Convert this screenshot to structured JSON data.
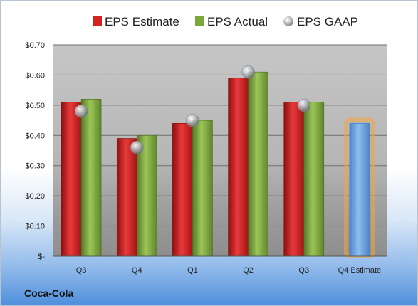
{
  "company": "Coca-Cola",
  "chart_data": {
    "type": "bar",
    "categories": [
      "Q3",
      "Q4",
      "Q1",
      "Q2",
      "Q3",
      "Q4 Estimate"
    ],
    "series": [
      {
        "name": "EPS Estimate",
        "values": [
          0.51,
          0.39,
          0.44,
          0.59,
          0.51,
          0.44
        ],
        "color": "#d42121",
        "style": "bar"
      },
      {
        "name": "EPS Actual",
        "values": [
          0.52,
          0.4,
          0.45,
          0.61,
          0.51,
          null
        ],
        "color": "#7ca83a",
        "style": "bar"
      },
      {
        "name": "EPS GAAP",
        "values": [
          0.48,
          0.36,
          0.45,
          0.61,
          0.5,
          null
        ],
        "color": "#b0b5bd",
        "style": "marker"
      }
    ],
    "highlight": {
      "category": "Q4 Estimate",
      "color": "#6fa3dc",
      "glow": "#f5a43a"
    },
    "ylim": [
      0,
      0.7
    ],
    "yticks": [
      0,
      0.1,
      0.2,
      0.3,
      0.4,
      0.5,
      0.6,
      0.7
    ],
    "ytick_labels": [
      "$-",
      "$0.10",
      "$0.20",
      "$0.30",
      "$0.40",
      "$0.50",
      "$0.60",
      "$0.70"
    ],
    "grid": true,
    "legend_position": "top"
  }
}
